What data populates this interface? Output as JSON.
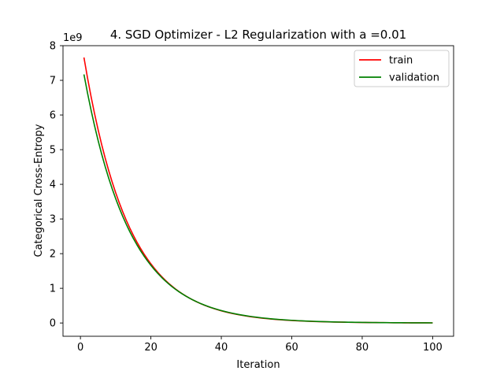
{
  "chart_data": {
    "type": "line",
    "title": "4. SGD Optimizer - L2 Regularization with a =0.01",
    "xlabel": "Iteration",
    "ylabel": "Categorical Cross-Entropy",
    "y_offset_label": "1e9",
    "xlim": [
      -4.95,
      105.95
    ],
    "ylim": [
      -0.383,
      8.0
    ],
    "x_ticks": [
      0,
      20,
      40,
      60,
      80,
      100
    ],
    "y_ticks": [
      0,
      1,
      2,
      3,
      4,
      5,
      6,
      7,
      8
    ],
    "legend": {
      "placement": "upper right"
    },
    "grid": false,
    "series": [
      {
        "name": "train",
        "color": "#ff0000",
        "start": 7.66,
        "decay_per_iteration": 0.924,
        "x": [
          1,
          100
        ]
      },
      {
        "name": "validation",
        "color": "#008000",
        "start": 7.17,
        "decay_per_iteration": 0.926,
        "x": [
          1,
          100
        ]
      }
    ]
  }
}
